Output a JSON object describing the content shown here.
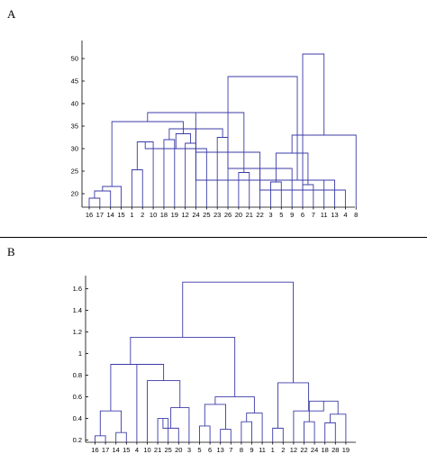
{
  "panels": {
    "a_label": "A",
    "b_label": "B"
  },
  "chart_data": [
    {
      "type": "dendrogram",
      "panel": "A",
      "title": "",
      "xlabel": "",
      "ylabel": "",
      "ylim": [
        17,
        54
      ],
      "yticks": [
        20,
        25,
        30,
        35,
        40,
        45,
        50
      ],
      "ytick_labels": [
        "20",
        "25",
        "30",
        "35",
        "40",
        "45",
        "50"
      ],
      "leaves": [
        "16",
        "17",
        "14",
        "15",
        "1",
        "2",
        "10",
        "18",
        "19",
        "12",
        "24",
        "25",
        "23",
        "26",
        "20",
        "21",
        "22",
        "3",
        "5",
        "9",
        "6",
        "7",
        "11",
        "13",
        "4",
        "8"
      ],
      "merges": [
        [
          0,
          1,
          19.0
        ],
        [
          26,
          2,
          20.6
        ],
        [
          27,
          3,
          21.6
        ],
        [
          4,
          5,
          25.3
        ],
        [
          7,
          8,
          32.0
        ],
        [
          6,
          29,
          31.5
        ],
        [
          9,
          10,
          31.2
        ],
        [
          31,
          11,
          30.0
        ],
        [
          12,
          13,
          32.5
        ],
        [
          32,
          33,
          33.3
        ],
        [
          30,
          34,
          34.4
        ],
        [
          28,
          35,
          36.0
        ],
        [
          14,
          15,
          24.7
        ],
        [
          36,
          16,
          29.2
        ],
        [
          37,
          38,
          38.0
        ],
        [
          17,
          18,
          22.6
        ],
        [
          20,
          21,
          22.0
        ],
        [
          40,
          22,
          23.0
        ],
        [
          39,
          19,
          25.6
        ],
        [
          41,
          42,
          29.0
        ],
        [
          43,
          23,
          23.0
        ],
        [
          44,
          24,
          20.8
        ],
        [
          45,
          25,
          33.0
        ],
        [
          39,
          46,
          46.0
        ],
        [
          47,
          48,
          51.0
        ]
      ]
    },
    {
      "type": "dendrogram",
      "panel": "B",
      "title": "",
      "xlabel": "",
      "ylabel": "",
      "ylim": [
        0.18,
        1.72
      ],
      "yticks": [
        0.2,
        0.4,
        0.6,
        0.8,
        1,
        1.2,
        1.4,
        1.6
      ],
      "ytick_labels": [
        "0.2",
        "0.4",
        "0.6",
        "0.8",
        "1",
        "1.2",
        "1.4",
        "1.6"
      ],
      "leaves": [
        "16",
        "17",
        "14",
        "15",
        "4",
        "10",
        "21",
        "25",
        "20",
        "3",
        "5",
        "6",
        "13",
        "7",
        "8",
        "9",
        "11",
        "1",
        "2",
        "12",
        "22",
        "24",
        "18",
        "28",
        "19"
      ],
      "merges": [
        [
          0,
          1,
          0.24
        ],
        [
          2,
          3,
          0.27
        ],
        [
          25,
          26,
          0.47
        ],
        [
          6,
          7,
          0.4
        ],
        [
          28,
          8,
          0.31
        ],
        [
          29,
          9,
          0.5
        ],
        [
          5,
          30,
          0.75
        ],
        [
          4,
          31,
          0.9
        ],
        [
          27,
          32,
          0.9
        ],
        [
          10,
          11,
          0.33
        ],
        [
          12,
          13,
          0.3
        ],
        [
          14,
          15,
          0.37
        ],
        [
          36,
          16,
          0.45
        ],
        [
          34,
          35,
          0.53
        ],
        [
          38,
          37,
          0.6
        ],
        [
          33,
          39,
          1.15
        ],
        [
          17,
          18,
          0.31
        ],
        [
          20,
          21,
          0.37
        ],
        [
          22,
          23,
          0.36
        ],
        [
          43,
          24,
          0.44
        ],
        [
          42,
          44,
          0.56
        ],
        [
          19,
          45,
          0.47
        ],
        [
          41,
          46,
          0.73
        ],
        [
          40,
          47,
          1.66
        ]
      ]
    }
  ]
}
